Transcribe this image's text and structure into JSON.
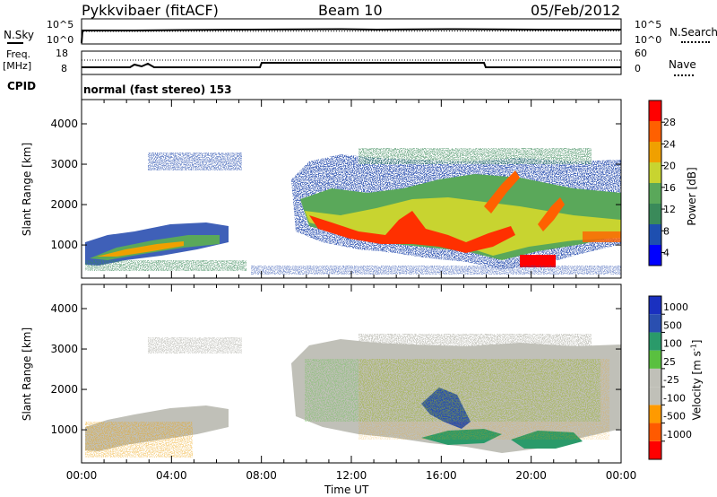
{
  "header": {
    "station": "Pykkvibaer (fitACF)",
    "beam": "Beam 10",
    "date": "05/Feb/2012"
  },
  "noise_panel": {
    "left_label": "N.Sky",
    "right_label": "N.Search",
    "left_ticks": [
      "10^5",
      "10^0"
    ],
    "right_ticks": [
      "10^5",
      "10^0"
    ]
  },
  "freq_panel": {
    "left_label_top": "Freq.",
    "left_label_unit": "[MHz]",
    "right_label": "Nave",
    "left_ticks": [
      "18",
      "8"
    ],
    "right_ticks": [
      "60",
      "0"
    ],
    "cpid_label": "CPID",
    "cpid_text": "normal (fast stereo) 153"
  },
  "colors": {
    "power_scale": [
      "#0000ff",
      "#1e4fb0",
      "#3a8a5a",
      "#5aa85a",
      "#c8d430",
      "#f0a000",
      "#ff6000",
      "#ff0000"
    ],
    "velocity_scale": [
      "#ff0000",
      "#ff5a00",
      "#ff9a00",
      "#c0c0b8",
      "#c0c0b8",
      "#5ac040",
      "#2a9a6a",
      "#2a4fb0",
      "#1a30c0"
    ],
    "ground_scatter": "#c0c0b8"
  },
  "time_axis": {
    "ticks": [
      "00:00",
      "04:00",
      "08:00",
      "12:00",
      "16:00",
      "20:00",
      "00:00"
    ],
    "label": "Time UT"
  },
  "power_colorbar": {
    "label": "Power [dB]",
    "ticks": [
      "28",
      "24",
      "20",
      "16",
      "12",
      "8",
      "4"
    ]
  },
  "velocity_colorbar": {
    "label_text": "Velocity  [m s",
    "label_sup": "-1",
    "label_end": "]",
    "ticks": [
      "1000",
      "500",
      "100",
      "25",
      "-25",
      "-100",
      "-500",
      "-1000"
    ]
  },
  "chart_data": [
    {
      "type": "heatmap",
      "panel": "power",
      "ylabel": "Slant Range [km]",
      "xlabel": "",
      "yticks": [
        1000,
        2000,
        3000,
        4000
      ],
      "ylim": [
        180,
        4600
      ],
      "xlim_hours": [
        0,
        24
      ],
      "colorbar_range": [
        3,
        30
      ],
      "colorbar_unit": "dB",
      "regions": [
        {
          "t0": 0.5,
          "t1": 6.4,
          "r0": 400,
          "r1": 1300,
          "level": "medium"
        },
        {
          "t0": 9.3,
          "t1": 24.0,
          "r0": 500,
          "r1": 2900,
          "level": "high"
        },
        {
          "t0": 2.5,
          "t1": 6.5,
          "r0": 2750,
          "r1": 3200,
          "level": "low"
        },
        {
          "t0": 18.4,
          "t1": 21.0,
          "r0": 300,
          "r1": 600,
          "level": "very-high"
        }
      ]
    },
    {
      "type": "heatmap",
      "panel": "velocity",
      "ylabel": "Slant Range [km]",
      "xlabel": "Time UT",
      "yticks": [
        1000,
        2000,
        3000,
        4000
      ],
      "ylim": [
        180,
        4600
      ],
      "xlim_hours": [
        0,
        24
      ],
      "colorbar_ticks": [
        1000,
        500,
        100,
        25,
        -25,
        -100,
        -500,
        -1000
      ],
      "colorbar_unit": "m s-1",
      "regions": [
        {
          "t0": 0.5,
          "t1": 6.4,
          "r0": 400,
          "r1": 1300,
          "level": "ground-scatter"
        },
        {
          "t0": 9.3,
          "t1": 24.0,
          "r0": 500,
          "r1": 2900,
          "level": "ground-scatter"
        },
        {
          "t0": 14.5,
          "t1": 16.0,
          "r0": 1400,
          "r1": 1800,
          "level": "positive-high"
        },
        {
          "t0": 13.5,
          "t1": 18.0,
          "r0": 600,
          "r1": 900,
          "level": "positive-medium"
        },
        {
          "t0": 18.5,
          "t1": 21.5,
          "r0": 500,
          "r1": 900,
          "level": "positive-medium"
        }
      ]
    }
  ]
}
